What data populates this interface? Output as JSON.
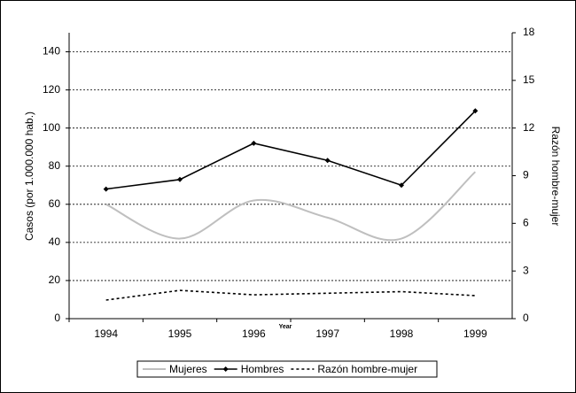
{
  "chart_data": {
    "type": "line",
    "x_label": "Year",
    "y_label": "Casos (por 1.000.000 hab.)",
    "y2_label": "Razón hombre-mujer",
    "categories": [
      "1994",
      "1995",
      "1996",
      "1997",
      "1998",
      "1999"
    ],
    "series": [
      {
        "name": "Mujeres",
        "color": "#bfbfbf",
        "dash": "solid",
        "smooth": true,
        "markers": false,
        "values": [
          60,
          42,
          62,
          53,
          42,
          77
        ]
      },
      {
        "name": "Hombres",
        "color": "#000000",
        "dash": "solid",
        "smooth": false,
        "markers": true,
        "values": [
          68,
          73,
          92,
          83,
          70,
          109
        ]
      },
      {
        "name": "Razón hombre-mujer",
        "color": "#000000",
        "dash": "dashed",
        "smooth": false,
        "markers": false,
        "axis": "y2",
        "values": [
          1.17,
          1.78,
          1.5,
          1.6,
          1.7,
          1.45
        ]
      }
    ],
    "ylim": [
      0,
      150
    ],
    "yticks": [
      0,
      20,
      40,
      60,
      80,
      100,
      120,
      140
    ],
    "y2lim": [
      0,
      18
    ],
    "y2ticks": [
      0,
      3,
      6,
      9,
      12,
      15,
      18
    ],
    "grid": true,
    "legend": "bottom"
  }
}
